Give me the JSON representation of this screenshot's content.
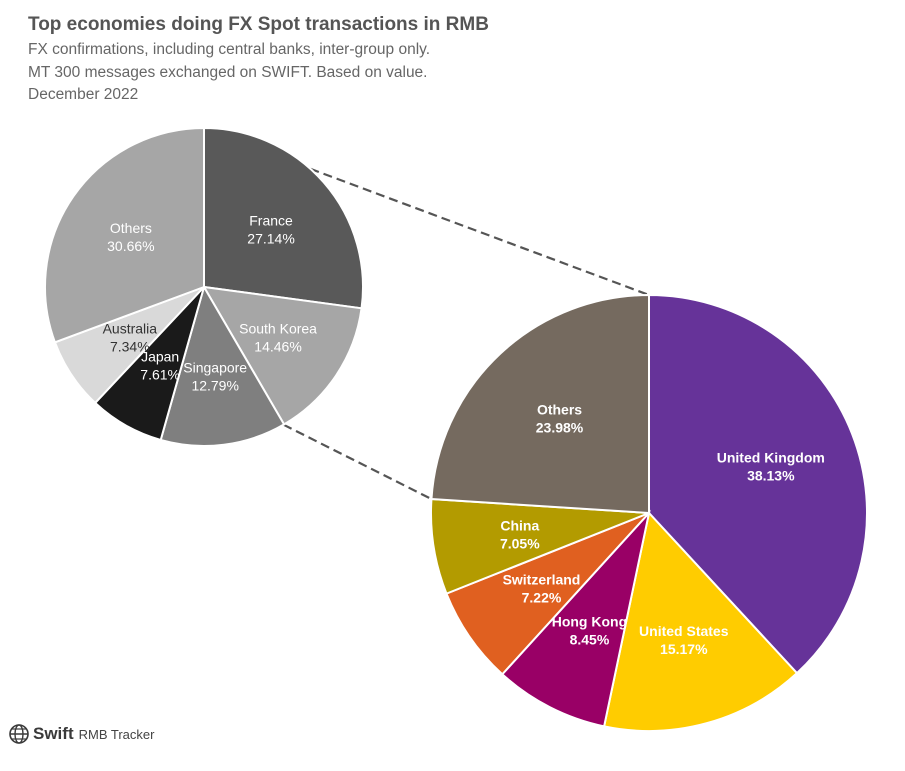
{
  "header": {
    "title": "Top economies doing FX Spot transactions in RMB",
    "subtitle_lines": [
      "FX confirmations, including central banks, inter-group only.",
      "MT 300 messages exchanged on SWIFT. Based on value.",
      "December 2022"
    ]
  },
  "footer": {
    "brand": "Swift",
    "product": "RMB Tracker"
  },
  "chart_data": [
    {
      "type": "pie",
      "title": "",
      "description": "breakdown of Others (23.98%) from the main pie",
      "slices": [
        {
          "label": "France",
          "value": 27.14,
          "value_label": "27.14%",
          "color": "#595959"
        },
        {
          "label": "South Korea",
          "value": 14.46,
          "value_label": "14.46%",
          "color": "#a6a6a6"
        },
        {
          "label": "Singapore",
          "value": 12.79,
          "value_label": "12.79%",
          "color": "#7f7f7f"
        },
        {
          "label": "Japan",
          "value": 7.61,
          "value_label": "7.61%",
          "color": "#1a1a1a"
        },
        {
          "label": "Australia",
          "value": 7.34,
          "value_label": "7.34%",
          "color": "#d9d9d9"
        },
        {
          "label": "Others",
          "value": 30.66,
          "value_label": "30.66%",
          "color": "#a6a6a6"
        }
      ]
    },
    {
      "type": "pie",
      "title": "",
      "slices": [
        {
          "label": "United Kingdom",
          "value": 38.13,
          "value_label": "38.13%",
          "color": "#663399"
        },
        {
          "label": "United States",
          "value": 15.17,
          "value_label": "15.17%",
          "color": "#ffcc00"
        },
        {
          "label": "Hong Kong",
          "value": 8.45,
          "value_label": "8.45%",
          "color": "#990066"
        },
        {
          "label": "Switzerland",
          "value": 7.22,
          "value_label": "7.22%",
          "color": "#e06020"
        },
        {
          "label": "China",
          "value": 7.05,
          "value_label": "7.05%",
          "color": "#b39b00"
        },
        {
          "label": "Others",
          "value": 23.98,
          "value_label": "23.98%",
          "color": "#756a5f"
        }
      ]
    }
  ]
}
